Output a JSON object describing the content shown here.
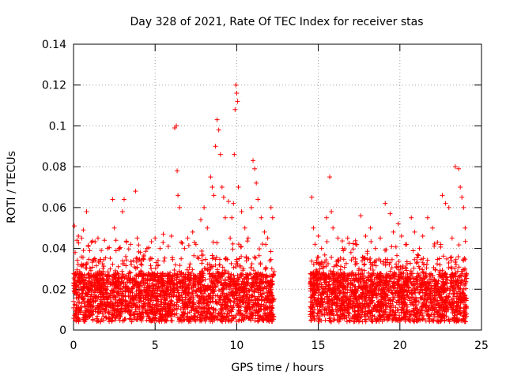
{
  "chart_data": {
    "type": "scatter",
    "title": "Day 328 of 2021, Rate Of TEC Index for receiver stas",
    "xlabel": "GPS time / hours",
    "ylabel": "ROTI / TECUs",
    "xlim": [
      0,
      25
    ],
    "ylim": [
      0,
      0.14
    ],
    "x_ticks": [
      0,
      5,
      10,
      15,
      20,
      25
    ],
    "x_tick_labels": [
      "0",
      "5",
      "10",
      "15",
      "20",
      "25"
    ],
    "y_ticks": [
      0,
      0.02,
      0.04,
      0.06,
      0.08,
      0.1,
      0.12,
      0.14
    ],
    "y_tick_labels": [
      "0",
      "0.02",
      "0.04",
      "0.06",
      "0.08",
      "0.1",
      "0.12",
      "0.14"
    ],
    "grid": true,
    "marker": "plus",
    "marker_color": "#ff0000",
    "series": [
      {
        "x": [
          0.05,
          0.1,
          0.3,
          0.5,
          0.6,
          0.8,
          0.9,
          1.1,
          1.3,
          1.5,
          1.7,
          1.9,
          2.1,
          2.4,
          2.5,
          2.6,
          2.8,
          3.0,
          3.1,
          3.2,
          3.5,
          3.8,
          3.9,
          4.1,
          4.3,
          4.5,
          4.8,
          5.0,
          5.3,
          5.5,
          5.8,
          6.0,
          6.2,
          6.3,
          6.35,
          6.4,
          6.5,
          6.6,
          6.8,
          7.0,
          7.3,
          7.5,
          7.8,
          8.0,
          8.2,
          8.4,
          8.5,
          8.6,
          8.7,
          8.8,
          8.9,
          9.0,
          9.1,
          9.2,
          9.3,
          9.5,
          9.6,
          9.7,
          9.8,
          9.85,
          9.9,
          9.95,
          10.0,
          10.05,
          10.1,
          10.3,
          10.5,
          10.7,
          10.9,
          11.0,
          11.1,
          11.2,
          11.3,
          11.5,
          11.7,
          11.9,
          12.1,
          12.2,
          14.6,
          14.7,
          14.8,
          15.0,
          15.2,
          15.5,
          15.7,
          15.8,
          15.9,
          16.2,
          16.5,
          16.8,
          17.0,
          17.3,
          17.6,
          17.9,
          18.2,
          18.5,
          18.8,
          19.1,
          19.4,
          19.6,
          19.9,
          20.1,
          20.4,
          20.7,
          20.9,
          21.2,
          21.4,
          21.7,
          22.0,
          22.3,
          22.6,
          22.8,
          23.0,
          23.2,
          23.4,
          23.6,
          23.7,
          23.8,
          23.9,
          24.0
        ],
        "y": [
          0.051,
          0.038,
          0.046,
          0.045,
          0.049,
          0.058,
          0.041,
          0.043,
          0.035,
          0.045,
          0.039,
          0.044,
          0.04,
          0.064,
          0.05,
          0.044,
          0.04,
          0.058,
          0.064,
          0.036,
          0.042,
          0.068,
          0.045,
          0.038,
          0.036,
          0.04,
          0.035,
          0.045,
          0.04,
          0.047,
          0.041,
          0.046,
          0.099,
          0.1,
          0.078,
          0.066,
          0.06,
          0.043,
          0.04,
          0.045,
          0.048,
          0.042,
          0.054,
          0.06,
          0.05,
          0.075,
          0.07,
          0.066,
          0.09,
          0.103,
          0.098,
          0.086,
          0.07,
          0.065,
          0.055,
          0.063,
          0.045,
          0.055,
          0.062,
          0.086,
          0.108,
          0.12,
          0.116,
          0.112,
          0.07,
          0.058,
          0.05,
          0.045,
          0.06,
          0.083,
          0.079,
          0.072,
          0.064,
          0.055,
          0.048,
          0.045,
          0.06,
          0.055,
          0.065,
          0.05,
          0.042,
          0.046,
          0.04,
          0.055,
          0.075,
          0.058,
          0.05,
          0.045,
          0.04,
          0.045,
          0.038,
          0.042,
          0.056,
          0.046,
          0.05,
          0.04,
          0.045,
          0.062,
          0.057,
          0.048,
          0.052,
          0.046,
          0.042,
          0.055,
          0.048,
          0.04,
          0.046,
          0.055,
          0.05,
          0.043,
          0.066,
          0.062,
          0.06,
          0.045,
          0.08,
          0.079,
          0.07,
          0.065,
          0.06,
          0.05
        ]
      }
    ]
  }
}
